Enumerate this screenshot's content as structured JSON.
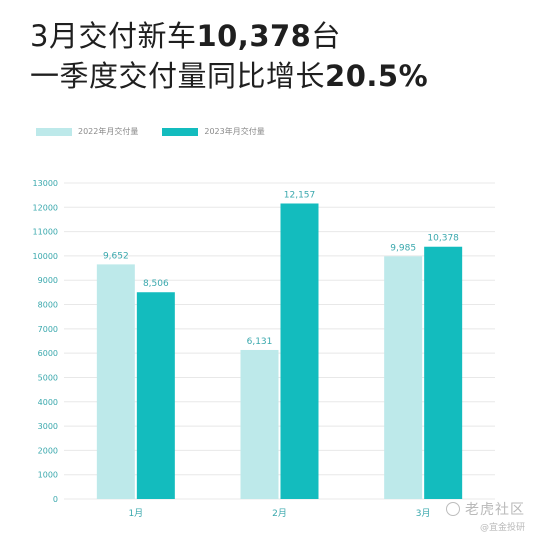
{
  "headline": {
    "line1_prefix": "3月交付新车",
    "line1_value": "10,378",
    "line1_suffix": "台",
    "line2_prefix": "一季度交付量同比增长",
    "line2_value": "20.5%"
  },
  "watermark": {
    "brand": "老虎社区",
    "handle": "@宜金投研"
  },
  "colors": {
    "series_2022": "#bde9ea",
    "series_2023": "#13bcbe",
    "axis_text": "#3aa8ad",
    "grid": "#e8e8e8"
  },
  "chart_data": {
    "type": "bar",
    "categories": [
      "1月",
      "2月",
      "3月"
    ],
    "series": [
      {
        "name": "2022年月交付量",
        "values": [
          9652,
          6131,
          9985
        ],
        "labels": [
          "9,652",
          "6,131",
          "9,985"
        ]
      },
      {
        "name": "2023年月交付量",
        "values": [
          8506,
          12157,
          10378
        ],
        "labels": [
          "8,506",
          "12,157",
          "10,378"
        ]
      }
    ],
    "ylim": [
      0,
      13000
    ],
    "yticks": [
      0,
      1000,
      2000,
      3000,
      4000,
      5000,
      6000,
      7000,
      8000,
      9000,
      10000,
      11000,
      12000,
      13000
    ],
    "grid": true,
    "legend": "top-left"
  }
}
